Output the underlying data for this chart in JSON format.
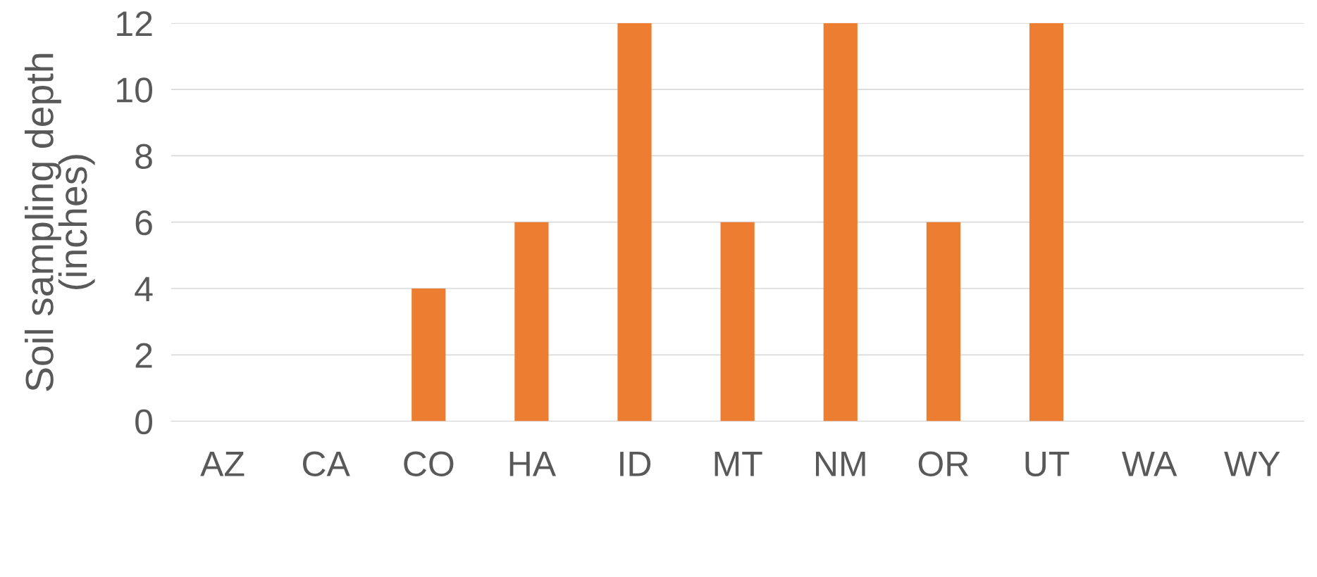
{
  "chart_data": {
    "type": "bar",
    "ylabel": "Soil sampling depth\n(inches)",
    "categories": [
      "AZ",
      "CA",
      "CO",
      "HA",
      "ID",
      "MT",
      "NM",
      "OR",
      "UT",
      "WA",
      "WY"
    ],
    "values": [
      null,
      null,
      4,
      6,
      12,
      6,
      12,
      6,
      12,
      null,
      null
    ],
    "color": "#ed7d31",
    "ylim": [
      0,
      12
    ],
    "yticks": [
      0,
      2,
      4,
      6,
      8,
      10,
      12
    ],
    "grid": "y"
  }
}
